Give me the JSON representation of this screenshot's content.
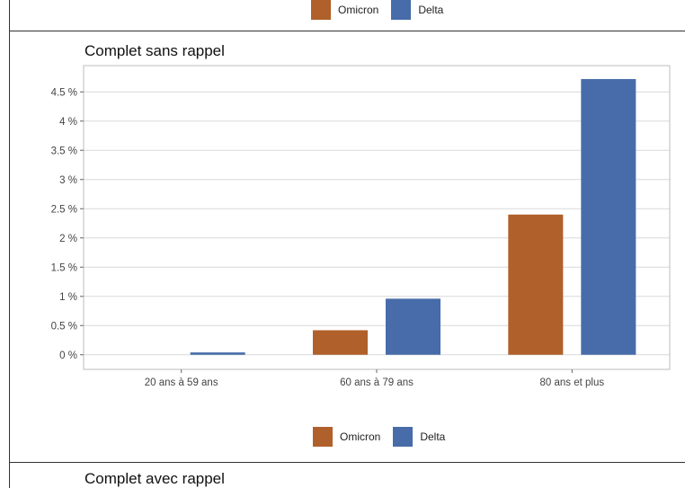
{
  "colors": {
    "omicron": "#b0602a",
    "delta": "#476ca9",
    "grid": "#d9d9d9",
    "panel_border": "#bdbdbd"
  },
  "legend": {
    "items": [
      {
        "label": "Omicron",
        "color": "#b0602a"
      },
      {
        "label": "Delta",
        "color": "#476ca9"
      }
    ]
  },
  "chart_data": {
    "type": "bar",
    "title": "Complet sans rappel",
    "categories": [
      "20 ans à 59 ans",
      "60 ans à 79 ans",
      "80 ans et plus"
    ],
    "series": [
      {
        "name": "Omicron",
        "values": [
          0,
          0.42,
          2.4
        ]
      },
      {
        "name": "Delta",
        "values": [
          0.04,
          0.96,
          4.72
        ]
      }
    ],
    "yticks": [
      0,
      0.5,
      1,
      1.5,
      2,
      2.5,
      3,
      3.5,
      4,
      4.5
    ],
    "ytick_labels": [
      "0 %",
      "0.5 %",
      "1 %",
      "1.5 %",
      "2 %",
      "2.5 %",
      "3 %",
      "3.5 %",
      "4 %",
      "4.5 %"
    ],
    "ylim": [
      -0.25,
      4.95
    ],
    "xlabel": "",
    "ylabel": "",
    "grid": true,
    "legend_position": "bottom"
  },
  "next_panel": {
    "title": "Complet avec rappel"
  }
}
